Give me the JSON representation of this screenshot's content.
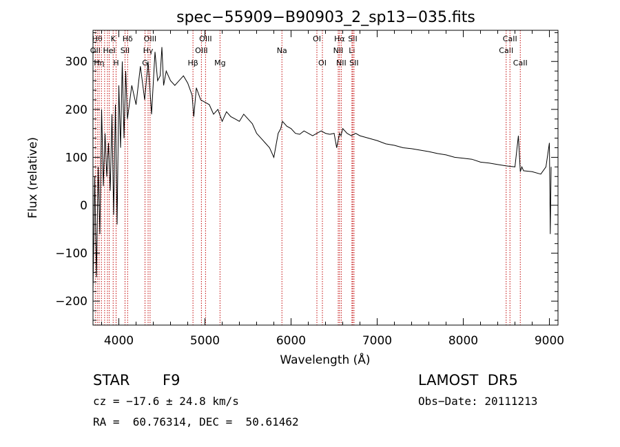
{
  "chart_data": {
    "type": "line",
    "title": "spec−55909−B90903_2_sp13−035.fits",
    "xlabel": "Wavelength (Å)",
    "ylabel": "Flux (relative)",
    "xlim": [
      3700,
      9100
    ],
    "ylim": [
      -250,
      365
    ],
    "xticks": [
      4000,
      5000,
      6000,
      7000,
      8000,
      9000
    ],
    "xtick_labels": [
      "4000",
      "5000",
      "6000",
      "7000",
      "8000",
      "9000"
    ],
    "yticks": [
      -200,
      -100,
      0,
      100,
      200,
      300
    ],
    "ytick_labels": [
      "−200",
      "−100",
      "0",
      "100",
      "200",
      "300"
    ],
    "grid": false,
    "series": [
      {
        "x": [
          3700,
          3720,
          3740,
          3760,
          3780,
          3800,
          3820,
          3840,
          3860,
          3880,
          3900,
          3920,
          3940,
          3960,
          3980,
          4000,
          4020,
          4040,
          4060,
          4080,
          4100,
          4150,
          4200,
          4250,
          4300,
          4340,
          4380,
          4420,
          4450,
          4480,
          4500,
          4520,
          4550,
          4600,
          4650,
          4700,
          4750,
          4800,
          4850,
          4870,
          4900,
          4950,
          5000,
          5050,
          5100,
          5150,
          5200,
          5250,
          5300,
          5350,
          5400,
          5450,
          5500,
          5550,
          5600,
          5650,
          5700,
          5750,
          5800,
          5850,
          5880,
          5900,
          5950,
          6000,
          6050,
          6100,
          6150,
          6200,
          6250,
          6300,
          6350,
          6400,
          6450,
          6500,
          6530,
          6563,
          6580,
          6600,
          6650,
          6700,
          6750,
          6800,
          6900,
          7000,
          7100,
          7200,
          7300,
          7400,
          7500,
          7600,
          7700,
          7800,
          7900,
          8000,
          8100,
          8200,
          8300,
          8400,
          8500,
          8600,
          8640,
          8662,
          8680,
          8700,
          8800,
          8900,
          8960,
          9000,
          9010,
          9020
        ],
        "y": [
          -180,
          60,
          -150,
          80,
          -60,
          200,
          40,
          150,
          60,
          130,
          30,
          190,
          -20,
          210,
          -40,
          250,
          120,
          300,
          140,
          280,
          180,
          250,
          210,
          290,
          220,
          300,
          190,
          320,
          260,
          270,
          330,
          250,
          280,
          260,
          250,
          260,
          270,
          255,
          230,
          185,
          245,
          220,
          215,
          210,
          190,
          200,
          175,
          195,
          185,
          180,
          175,
          190,
          180,
          170,
          150,
          140,
          130,
          120,
          100,
          150,
          160,
          175,
          165,
          160,
          150,
          148,
          155,
          150,
          145,
          150,
          155,
          150,
          148,
          150,
          120,
          150,
          145,
          160,
          150,
          145,
          150,
          145,
          140,
          135,
          128,
          125,
          120,
          118,
          115,
          112,
          108,
          105,
          100,
          98,
          96,
          90,
          88,
          85,
          82,
          80,
          145,
          70,
          80,
          72,
          70,
          65,
          80,
          130,
          -60,
          80
        ]
      }
    ],
    "line_markers": [
      {
        "wavelength": 3750,
        "label": "Hθ",
        "row": 0
      },
      {
        "wavelength": 3727,
        "label": "OII",
        "row": 1
      },
      {
        "wavelength": 3771,
        "label": "Hη",
        "row": 2
      },
      {
        "wavelength": 3798,
        "label": "",
        "row": 3
      },
      {
        "wavelength": 3835,
        "label": "",
        "row": 3
      },
      {
        "wavelength": 3868,
        "label": "",
        "row": 3
      },
      {
        "wavelength": 3889,
        "label": "HeI",
        "row": 1
      },
      {
        "wavelength": 3934,
        "label": "K",
        "row": 0
      },
      {
        "wavelength": 3968,
        "label": "H",
        "row": 2
      },
      {
        "wavelength": 4072,
        "label": "SII",
        "row": 1
      },
      {
        "wavelength": 4102,
        "label": "Hδ",
        "row": 0
      },
      {
        "wavelength": 4304,
        "label": "G",
        "row": 2
      },
      {
        "wavelength": 4340,
        "label": "Hγ",
        "row": 1
      },
      {
        "wavelength": 4363,
        "label": "OIII",
        "row": 0
      },
      {
        "wavelength": 4861,
        "label": "Hβ",
        "row": 2
      },
      {
        "wavelength": 4959,
        "label": "OIII",
        "row": 1
      },
      {
        "wavelength": 5007,
        "label": "OIII",
        "row": 0
      },
      {
        "wavelength": 5175,
        "label": "Mg",
        "row": 2
      },
      {
        "wavelength": 5894,
        "label": "Na",
        "row": 1
      },
      {
        "wavelength": 6300,
        "label": "OI",
        "row": 0
      },
      {
        "wavelength": 6364,
        "label": "OI",
        "row": 2
      },
      {
        "wavelength": 6548,
        "label": "NII",
        "row": 1
      },
      {
        "wavelength": 6563,
        "label": "Hα",
        "row": 0
      },
      {
        "wavelength": 6583,
        "label": "NII",
        "row": 2
      },
      {
        "wavelength": 6707,
        "label": "Li",
        "row": 1
      },
      {
        "wavelength": 6716,
        "label": "SII",
        "row": 0
      },
      {
        "wavelength": 6731,
        "label": "SII",
        "row": 2
      },
      {
        "wavelength": 8498,
        "label": "CaII",
        "row": 1
      },
      {
        "wavelength": 8542,
        "label": "CaII",
        "row": 0
      },
      {
        "wavelength": 8662,
        "label": "CaII",
        "row": 2
      }
    ],
    "marker_color": "#c00000"
  },
  "info": {
    "class_label": "STAR",
    "subclass": "F9",
    "survey": "LAMOST  DR5",
    "redshift": "cz = −17.6 ± 24.8 km/s",
    "obs_date": "Obs−Date: 20111213",
    "coords": "RA =  60.76314, DEC =  50.61462"
  }
}
